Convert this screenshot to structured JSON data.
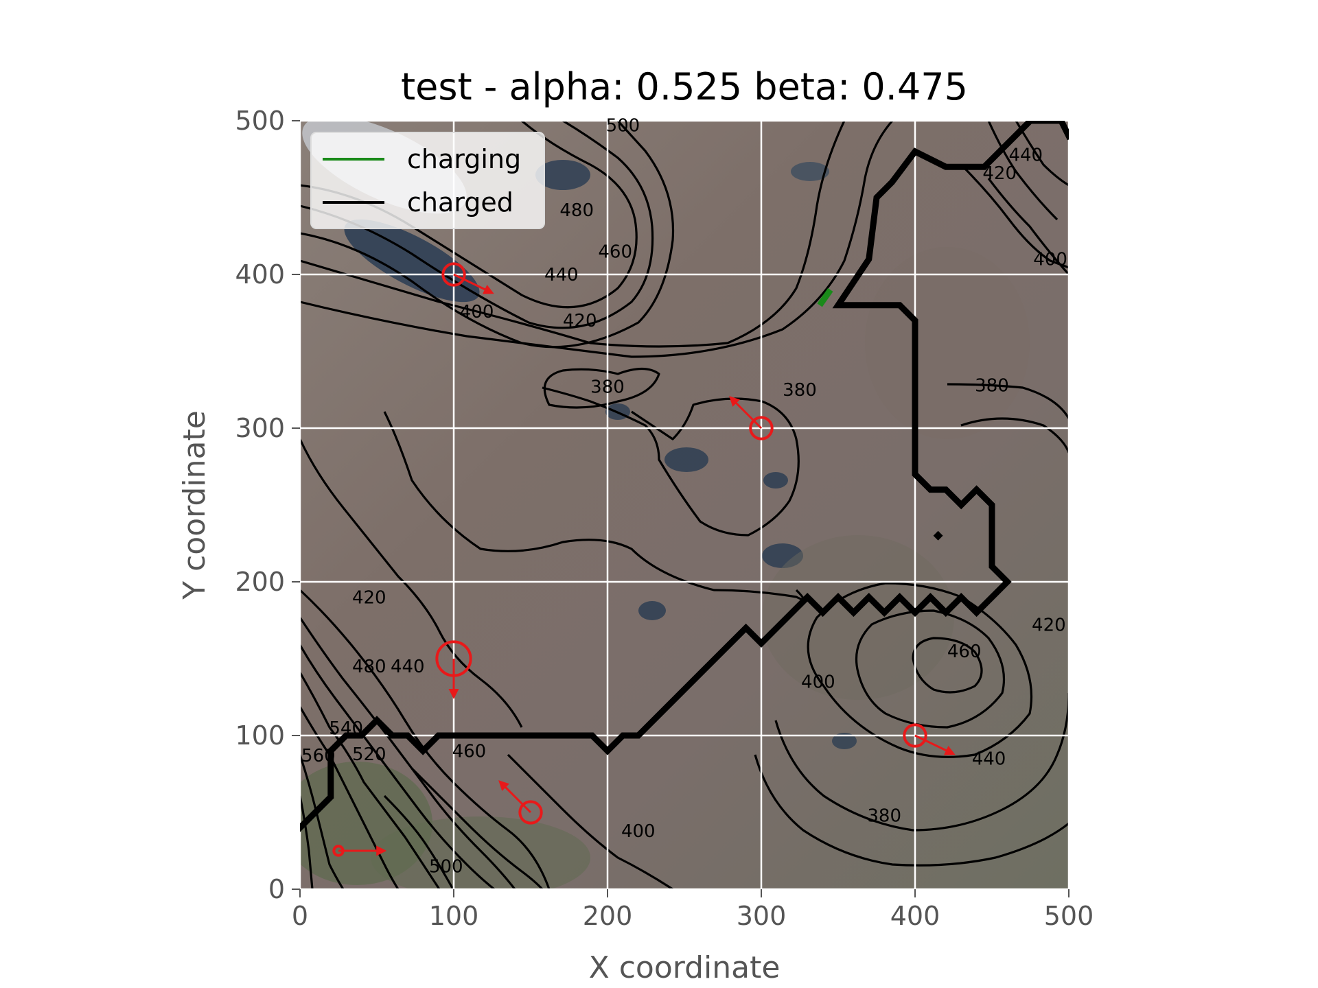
{
  "chart_data": {
    "type": "contour-map",
    "title": "test - alpha: 0.525 beta: 0.475",
    "xlabel": "X coordinate",
    "ylabel": "Y coordinate",
    "xlim": [
      0,
      500
    ],
    "ylim": [
      0,
      500
    ],
    "xticks": [
      0,
      100,
      200,
      300,
      400,
      500
    ],
    "yticks": [
      0,
      100,
      200,
      300,
      400,
      500
    ],
    "grid": true,
    "legend": {
      "placement": "top-left",
      "entries": [
        {
          "label": "charging",
          "color": "#1a8a1a"
        },
        {
          "label": "charged",
          "color": "#000000"
        }
      ]
    },
    "contour_labels": [
      {
        "text": "500",
        "x": 210,
        "y": 497
      },
      {
        "text": "480",
        "x": 180,
        "y": 442
      },
      {
        "text": "460",
        "x": 205,
        "y": 415
      },
      {
        "text": "440",
        "x": 170,
        "y": 400
      },
      {
        "text": "420",
        "x": 182,
        "y": 370
      },
      {
        "text": "400",
        "x": 115,
        "y": 376
      },
      {
        "text": "380",
        "x": 200,
        "y": 327
      },
      {
        "text": "380",
        "x": 325,
        "y": 325
      },
      {
        "text": "380",
        "x": 450,
        "y": 328
      },
      {
        "text": "440",
        "x": 472,
        "y": 478
      },
      {
        "text": "420",
        "x": 455,
        "y": 466
      },
      {
        "text": "400",
        "x": 488,
        "y": 410
      },
      {
        "text": "420",
        "x": 45,
        "y": 190
      },
      {
        "text": "480",
        "x": 45,
        "y": 145
      },
      {
        "text": "440",
        "x": 70,
        "y": 145
      },
      {
        "text": "460",
        "x": 110,
        "y": 90
      },
      {
        "text": "520",
        "x": 45,
        "y": 88
      },
      {
        "text": "540",
        "x": 30,
        "y": 105
      },
      {
        "text": "560",
        "x": 12,
        "y": 87
      },
      {
        "text": "500",
        "x": 95,
        "y": 15
      },
      {
        "text": "400",
        "x": 220,
        "y": 38
      },
      {
        "text": "400",
        "x": 337,
        "y": 135
      },
      {
        "text": "460",
        "x": 432,
        "y": 155
      },
      {
        "text": "440",
        "x": 448,
        "y": 85
      },
      {
        "text": "380",
        "x": 380,
        "y": 48
      },
      {
        "text": "420",
        "x": 487,
        "y": 172
      }
    ],
    "charged_path": [
      [
        0,
        40
      ],
      [
        20,
        60
      ],
      [
        20,
        90
      ],
      [
        30,
        100
      ],
      [
        40,
        100
      ],
      [
        50,
        110
      ],
      [
        60,
        100
      ],
      [
        70,
        100
      ],
      [
        80,
        90
      ],
      [
        90,
        100
      ],
      [
        190,
        100
      ],
      [
        200,
        90
      ],
      [
        210,
        100
      ],
      [
        220,
        100
      ],
      [
        290,
        170
      ],
      [
        300,
        160
      ],
      [
        310,
        170
      ],
      [
        320,
        180
      ],
      [
        330,
        190
      ],
      [
        340,
        180
      ],
      [
        350,
        190
      ],
      [
        360,
        180
      ],
      [
        370,
        190
      ],
      [
        380,
        180
      ],
      [
        390,
        190
      ],
      [
        400,
        180
      ],
      [
        410,
        190
      ],
      [
        420,
        180
      ],
      [
        430,
        190
      ],
      [
        440,
        180
      ],
      [
        450,
        190
      ],
      [
        460,
        200
      ],
      [
        450,
        210
      ],
      [
        450,
        250
      ],
      [
        440,
        260
      ],
      [
        430,
        250
      ],
      [
        420,
        260
      ],
      [
        410,
        260
      ],
      [
        400,
        270
      ],
      [
        400,
        370
      ],
      [
        390,
        380
      ],
      [
        360,
        380
      ],
      [
        350,
        380
      ],
      [
        370,
        410
      ],
      [
        375,
        450
      ],
      [
        385,
        460
      ],
      [
        400,
        480
      ],
      [
        420,
        470
      ],
      [
        445,
        470
      ],
      [
        455,
        480
      ],
      [
        465,
        490
      ],
      [
        475,
        500
      ],
      [
        495,
        500
      ],
      [
        500,
        490
      ]
    ],
    "charging_path": [
      [
        338,
        380
      ],
      [
        345,
        390
      ]
    ],
    "agents": [
      {
        "x": 100,
        "y": 400,
        "r": 7,
        "dx": 25,
        "dy": -12
      },
      {
        "x": 300,
        "y": 300,
        "r": 7,
        "dx": -20,
        "dy": 20
      },
      {
        "x": 100,
        "y": 150,
        "r": 11,
        "dx": 0,
        "dy": -25
      },
      {
        "x": 400,
        "y": 100,
        "r": 7,
        "dx": 25,
        "dy": -12
      },
      {
        "x": 150,
        "y": 50,
        "r": 7,
        "dx": -20,
        "dy": 20
      },
      {
        "x": 25,
        "y": 25,
        "r": 3,
        "dx": 30,
        "dy": 0
      }
    ],
    "marker": {
      "x": 415,
      "y": 230
    }
  }
}
